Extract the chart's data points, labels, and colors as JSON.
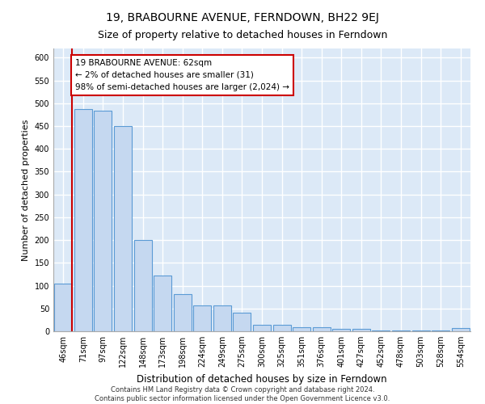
{
  "title": "19, BRABOURNE AVENUE, FERNDOWN, BH22 9EJ",
  "subtitle": "Size of property relative to detached houses in Ferndown",
  "xlabel": "Distribution of detached houses by size in Ferndown",
  "ylabel": "Number of detached properties",
  "bar_labels": [
    "46sqm",
    "71sqm",
    "97sqm",
    "122sqm",
    "148sqm",
    "173sqm",
    "198sqm",
    "224sqm",
    "249sqm",
    "275sqm",
    "300sqm",
    "325sqm",
    "351sqm",
    "376sqm",
    "401sqm",
    "427sqm",
    "452sqm",
    "478sqm",
    "503sqm",
    "528sqm",
    "554sqm"
  ],
  "bar_values": [
    104,
    487,
    483,
    450,
    200,
    122,
    81,
    57,
    57,
    41,
    15,
    15,
    9,
    9,
    5,
    5,
    2,
    1,
    1,
    1,
    7
  ],
  "bar_color": "#c5d8f0",
  "bar_edge_color": "#5b9bd5",
  "annotation_line1": "19 BRABOURNE AVENUE: 62sqm",
  "annotation_line2": "← 2% of detached houses are smaller (31)",
  "annotation_line3": "98% of semi-detached houses are larger (2,024) →",
  "vline_color": "#cc0000",
  "annotation_box_color": "#ffffff",
  "annotation_box_edge_color": "#cc0000",
  "footer_text": "Contains HM Land Registry data © Crown copyright and database right 2024.\nContains public sector information licensed under the Open Government Licence v3.0.",
  "ylim": [
    0,
    620
  ],
  "yticks": [
    0,
    50,
    100,
    150,
    200,
    250,
    300,
    350,
    400,
    450,
    500,
    550,
    600
  ],
  "background_color": "#dce9f7",
  "grid_color": "#ffffff",
  "title_fontsize": 10,
  "subtitle_fontsize": 9,
  "axis_label_fontsize": 8,
  "tick_fontsize": 7,
  "annotation_fontsize": 7.5,
  "footer_fontsize": 6
}
